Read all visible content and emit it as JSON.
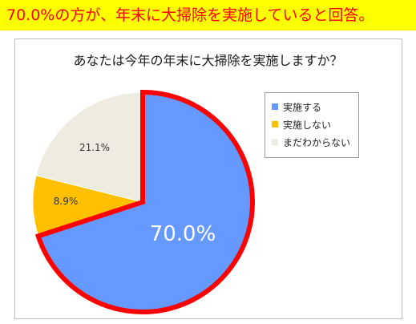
{
  "banner": {
    "text": "70.0%の方が、年末に大掃除を実施していると回答。"
  },
  "chart_data": {
    "type": "pie",
    "title": "あなたは今年の年末に大掃除を実施しますか？",
    "slices": [
      {
        "name": "実施する",
        "value": 70.0,
        "label": "70.0%",
        "color": "#6699ff",
        "highlighted": true,
        "highlight_color": "#ff0000"
      },
      {
        "name": "",
        "value": 0.0,
        "label": "",
        "color": "#8faadc"
      },
      {
        "name": "実施しない",
        "value": 8.9,
        "label": "8.9%",
        "color": "#ffc000"
      },
      {
        "name": "まだわからない",
        "value": 21.1,
        "label": "21.1%",
        "color": "#eeece1"
      }
    ],
    "legend": {
      "placement": "right",
      "items": [
        {
          "label": "実施する",
          "color": "#6699ff"
        },
        {
          "label": "実施しない",
          "color": "#ffc000"
        },
        {
          "label": "まだわからない",
          "color": "#eeece1"
        }
      ]
    }
  }
}
